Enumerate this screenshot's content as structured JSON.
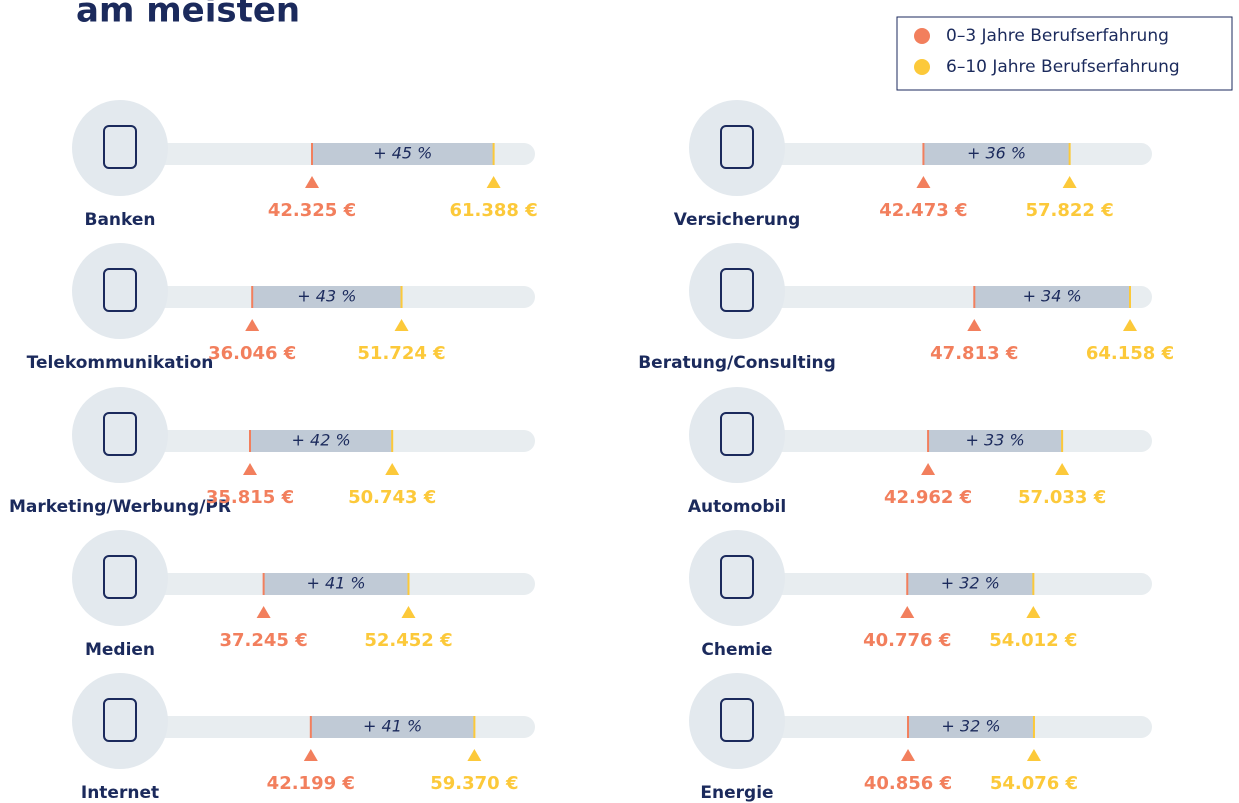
{
  "chart_data": {
    "type": "dumbbell",
    "title": "am meisten",
    "categories": [
      "Banken",
      "Telekommunikation",
      "Marketing/Werbung/PR",
      "Medien",
      "Internet",
      "Versicherung",
      "Beratung/Consulting",
      "Automobil",
      "Chemie",
      "Energie"
    ],
    "series": [
      {
        "name": "0–3 Jahre Berufserfahrung",
        "color": "#f27f5d",
        "values": [
          42325,
          36046,
          35815,
          37245,
          42199,
          42473,
          47813,
          42962,
          40776,
          40856
        ],
        "value_labels": [
          "42.325 €",
          "36.046 €",
          "35.815 €",
          "37.245 €",
          "42.199 €",
          "42.473 €",
          "47.813 €",
          "42.962 €",
          "40.776 €",
          "40.856 €"
        ]
      },
      {
        "name": "6–10 Jahre Berufserfahrung",
        "color": "#fcc93a",
        "values": [
          61388,
          51724,
          50743,
          52452,
          59370,
          57822,
          64158,
          57033,
          54012,
          54076
        ],
        "value_labels": [
          "61.388 €",
          "51.724 €",
          "50.743 €",
          "52.452 €",
          "59.370 €",
          "57.822 €",
          "64.158 €",
          "57.033 €",
          "54.012 €",
          "54.076 €"
        ]
      }
    ],
    "growth": {
      "values": [
        45,
        43,
        42,
        41,
        41,
        36,
        34,
        33,
        32,
        32
      ],
      "value_labels": [
        "+ 45 %",
        "+ 43 %",
        "+ 42 %",
        "+ 41 %",
        "+ 41 %",
        "+ 36 %",
        "+ 34 %",
        "+ 33 %",
        "+ 32 %",
        "+ 32 %"
      ]
    },
    "legend": "top-right"
  }
}
